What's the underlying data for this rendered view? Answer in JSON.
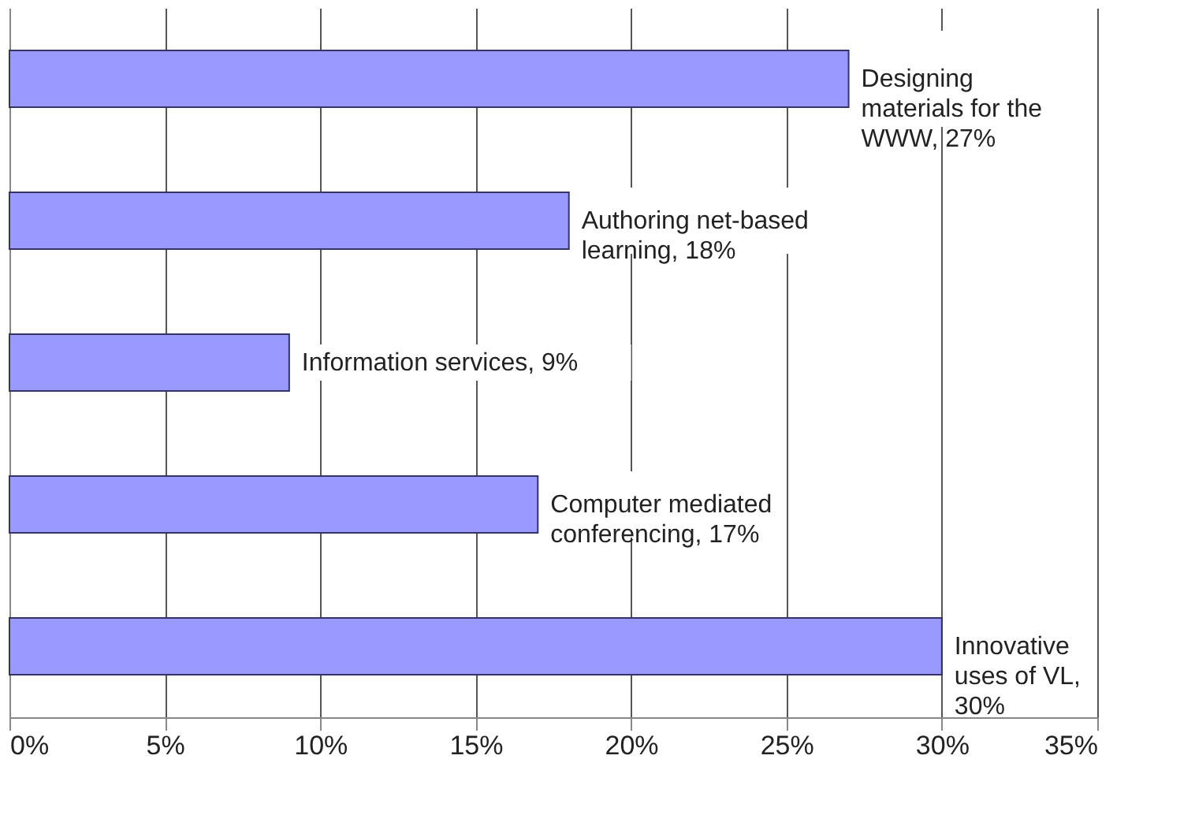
{
  "chart_data": {
    "type": "bar",
    "orientation": "horizontal",
    "categories": [
      "Designing\nmaterials for the\nWWW, 27%",
      "Authoring net-based\nlearning, 18%",
      "Information  services, 9%",
      "Computer mediated\nconferencing, 17%",
      "Innovative\nuses of VL,\n30%"
    ],
    "values": [
      27,
      18,
      9,
      17,
      30
    ],
    "color": "#9999ff",
    "xlim": [
      0,
      35
    ],
    "xticks": [
      {
        "value": 0,
        "label": "0%"
      },
      {
        "value": 5,
        "label": "5%"
      },
      {
        "value": 10,
        "label": "10%"
      },
      {
        "value": 15,
        "label": "15%"
      },
      {
        "value": 20,
        "label": "20%"
      },
      {
        "value": 25,
        "label": "25%"
      },
      {
        "value": 30,
        "label": "30%"
      },
      {
        "value": 35,
        "label": "35%"
      }
    ],
    "grid": "x",
    "tick_labels": "x"
  }
}
